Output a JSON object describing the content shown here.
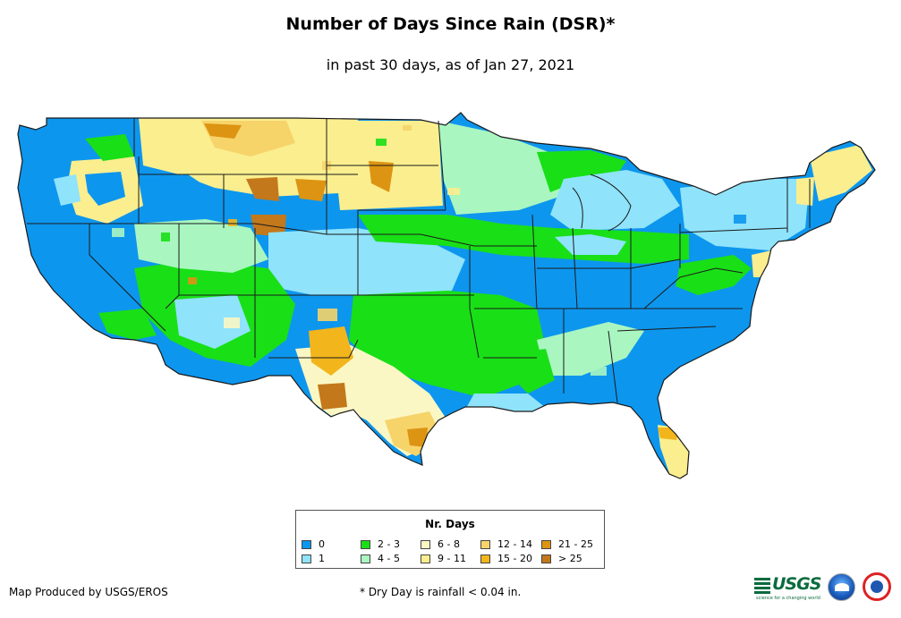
{
  "title": "Number of Days Since Rain (DSR)*",
  "subtitle": "in past 30 days, as of Jan 27, 2021",
  "legend": {
    "title": "Nr. Days",
    "items": [
      {
        "label": "0",
        "color": "#0d96ee"
      },
      {
        "label": "1",
        "color": "#8fe3fb"
      },
      {
        "label": "2 - 3",
        "color": "#19df17"
      },
      {
        "label": "4 - 5",
        "color": "#a9f6c1"
      },
      {
        "label": "6 - 8",
        "color": "#fbf7c4"
      },
      {
        "label": "9 - 11",
        "color": "#fbee8e"
      },
      {
        "label": "12 - 14",
        "color": "#f6d46a"
      },
      {
        "label": "15 - 20",
        "color": "#f2b51c"
      },
      {
        "label": "21 - 25",
        "color": "#dc9412"
      },
      {
        "label": "> 25",
        "color": "#c3781b"
      }
    ]
  },
  "credit": "Map Produced by USGS/EROS",
  "footnote": "* Dry Day is rainfall < 0.04 in.",
  "logos": {
    "usgs": "USGS",
    "usgs_tagline": "science for a changing world",
    "noaa": "noaa"
  }
}
